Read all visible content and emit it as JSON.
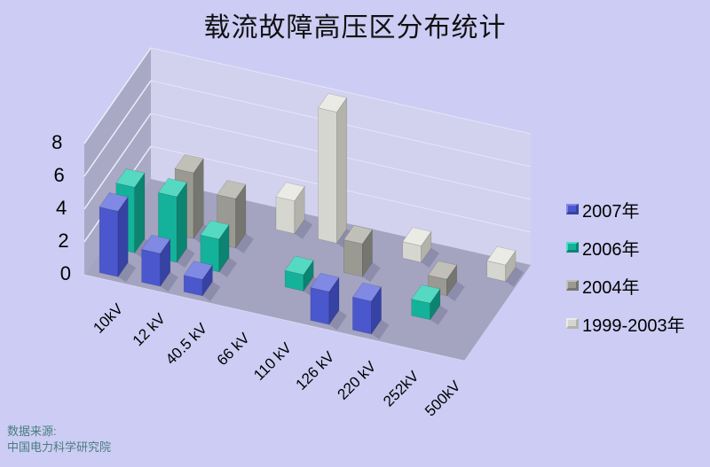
{
  "title": "载流故障高压区分布统计",
  "source": {
    "line1": "数据来源:",
    "line2": "中国电力科学研究院"
  },
  "colors": {
    "background": "#cdccf4",
    "left_wall": "#a9a9c6",
    "back_wall": "#d2d1ee",
    "floor": "#a4a4c1",
    "wall_gridline": "#ecedf8",
    "back_gridline": "rgba(255,255,255,0.45)",
    "shadow": "rgba(55,55,95,0.22)",
    "title_text": "#111111",
    "source_text": "#477e80"
  },
  "chart_data": {
    "type": "bar",
    "subtype": "3d-column",
    "title": "载流故障高压区分布统计",
    "categories": [
      "10kV",
      "12 kV",
      "40.5 kV",
      "66 kV",
      "110 kV",
      "126 kV",
      "220 kV",
      "252kV",
      "500kV"
    ],
    "series": [
      {
        "name": "2007年",
        "color": "#4b57cd",
        "top": "#8089e3",
        "side": "#3642a4",
        "values": [
          4,
          2,
          1,
          0,
          0,
          2,
          2,
          0,
          0
        ]
      },
      {
        "name": "2006年",
        "color": "#14b29a",
        "top": "#55d9c3",
        "side": "#0c8472",
        "values": [
          4,
          4,
          2,
          0,
          1,
          0,
          0,
          1,
          0
        ]
      },
      {
        "name": "2004年",
        "color": "#9a9a92",
        "top": "#c0c0b8",
        "side": "#767670",
        "values": [
          0,
          4,
          3,
          0,
          0,
          2,
          0,
          1,
          0
        ]
      },
      {
        "name": "1999-2003年",
        "color": "#d6d6d0",
        "top": "#ebebe5",
        "side": "#b3b3ab",
        "values": [
          0,
          0,
          0,
          2,
          8,
          0,
          1,
          0,
          1
        ]
      }
    ],
    "yticks": [
      "0",
      "2",
      "4",
      "6",
      "8"
    ],
    "ylim": [
      0,
      8
    ],
    "grid": true,
    "legend_position": "right"
  }
}
